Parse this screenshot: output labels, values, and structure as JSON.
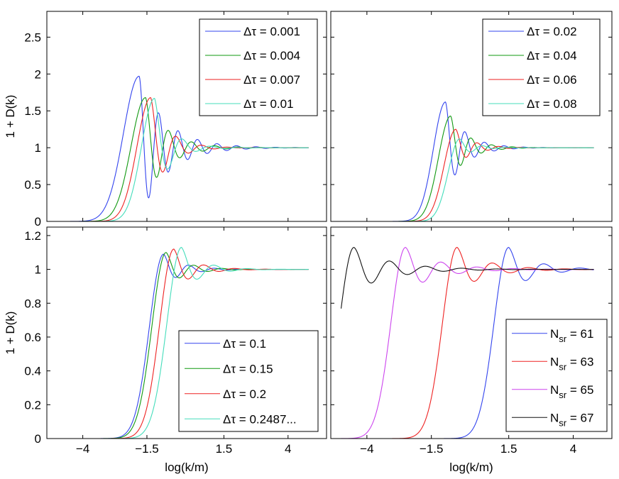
{
  "chart_data": [
    {
      "id": "tl",
      "type": "line",
      "title": "",
      "xlabel": "",
      "ylabel": "1 + D(k)",
      "xlim": [
        -5.4,
        5.5
      ],
      "ylim": [
        0,
        2.85
      ],
      "xticks": [
        -4,
        -1.5,
        1.5,
        4
      ],
      "xticklabels": [
        "",
        "",
        "",
        ""
      ],
      "yticks": [
        0,
        0.5,
        1,
        1.5,
        2,
        2.5
      ],
      "yticklabels": [
        "0",
        "0.5",
        "1",
        "1.5",
        "2",
        "2.5"
      ],
      "legend_position": "top-right",
      "series": [
        {
          "name": "Δτ = 0.001",
          "color": "#3344ee",
          "x_start": -5.0,
          "x_end": 4.8,
          "peak_x": -1.8,
          "peak_y": 1.97,
          "width": 0.78,
          "osc_amp": 1.6,
          "osc_period": 0.38,
          "decay": 0.95,
          "osc_rise": 3.0
        },
        {
          "name": "Δτ = 0.004",
          "color": "#119911",
          "x_start": -5.0,
          "x_end": 4.8,
          "peak_x": -1.55,
          "peak_y": 1.68,
          "width": 0.72,
          "osc_amp": 0.5,
          "osc_period": 0.45,
          "decay": 1.2,
          "osc_rise": 2.0
        },
        {
          "name": "Δτ = 0.007",
          "color": "#ee2222",
          "x_start": -5.0,
          "x_end": 4.8,
          "peak_x": -1.35,
          "peak_y": 1.68,
          "width": 0.68,
          "osc_amp": 0.3,
          "osc_period": 0.5,
          "decay": 1.5,
          "osc_rise": 2.0
        },
        {
          "name": "Δτ = 0.01",
          "color": "#44ddbb",
          "x_start": -5.0,
          "x_end": 4.8,
          "peak_x": -1.2,
          "peak_y": 1.67,
          "width": 0.65,
          "osc_amp": 0.25,
          "osc_period": 0.55,
          "decay": 1.6,
          "osc_rise": 2.0
        }
      ]
    },
    {
      "id": "tr",
      "type": "line",
      "title": "",
      "xlabel": "",
      "ylabel": "",
      "xlim": [
        -5.4,
        5.5
      ],
      "ylim": [
        0,
        2.85
      ],
      "xticks": [
        -4,
        -1.5,
        1.5,
        4
      ],
      "xticklabels": [
        "",
        "",
        "",
        ""
      ],
      "yticks": [
        0,
        0.5,
        1,
        1.5,
        2,
        2.5
      ],
      "yticklabels": [
        "",
        "",
        "",
        "",
        "",
        ""
      ],
      "legend_position": "top-right",
      "series": [
        {
          "name": "Δτ = 0.02",
          "color": "#3344ee",
          "x_start": -5.0,
          "x_end": 4.8,
          "peak_x": -0.95,
          "peak_y": 1.62,
          "width": 0.6,
          "osc_amp": 0.3,
          "osc_period": 0.38,
          "decay": 1.4,
          "osc_rise": 2.0
        },
        {
          "name": "Δτ = 0.04",
          "color": "#119911",
          "x_start": -5.0,
          "x_end": 4.8,
          "peak_x": -0.75,
          "peak_y": 1.43,
          "width": 0.6,
          "osc_amp": 0.22,
          "osc_period": 0.4,
          "decay": 1.5,
          "osc_rise": 2.0
        },
        {
          "name": "Δτ = 0.06",
          "color": "#ee2222",
          "x_start": -5.0,
          "x_end": 4.8,
          "peak_x": -0.55,
          "peak_y": 1.25,
          "width": 0.58,
          "osc_amp": 0.15,
          "osc_period": 0.42,
          "decay": 1.6,
          "osc_rise": 2.0
        },
        {
          "name": "Δτ = 0.08",
          "color": "#44ddbb",
          "x_start": -5.0,
          "x_end": 4.8,
          "peak_x": -0.4,
          "peak_y": 1.12,
          "width": 0.56,
          "osc_amp": 0.1,
          "osc_period": 0.45,
          "decay": 1.7,
          "osc_rise": 2.0
        }
      ]
    },
    {
      "id": "bl",
      "type": "line",
      "title": "",
      "xlabel": "log(k/m)",
      "ylabel": "1 + D(k)",
      "xlim": [
        -5.4,
        5.5
      ],
      "ylim": [
        0,
        1.25
      ],
      "xticks": [
        -4,
        -1.5,
        1.5,
        4
      ],
      "xticklabels": [
        "−4",
        "−1.5",
        "1.5",
        "4"
      ],
      "yticks": [
        0,
        0.2,
        0.4,
        0.6,
        0.8,
        1.0,
        1.2
      ],
      "yticklabels": [
        "0",
        "0.2",
        "0.4",
        "0.6",
        "0.8",
        "1",
        "1.2"
      ],
      "legend_position": "bottom-right",
      "series": [
        {
          "name": "Δτ = 0.1",
          "color": "#3344ee",
          "x_start": -5.0,
          "x_end": 4.8,
          "peak_x": -0.85,
          "peak_y": 1.09,
          "width": 0.7,
          "osc_amp": 0.06,
          "osc_period": 0.5,
          "decay": 1.3,
          "osc_rise": 2.0
        },
        {
          "name": "Δτ = 0.15",
          "color": "#119911",
          "x_start": -5.0,
          "x_end": 4.8,
          "peak_x": -0.75,
          "peak_y": 1.1,
          "width": 0.7,
          "osc_amp": 0.05,
          "osc_period": 0.55,
          "decay": 1.3,
          "osc_rise": 2.0
        },
        {
          "name": "Δτ = 0.2",
          "color": "#ee2222",
          "x_start": -5.0,
          "x_end": 4.8,
          "peak_x": -0.45,
          "peak_y": 1.12,
          "width": 0.7,
          "osc_amp": 0.05,
          "osc_period": 0.6,
          "decay": 1.3,
          "osc_rise": 2.0
        },
        {
          "name": "Δτ = 0.2487...",
          "color": "#44ddbb",
          "x_start": -5.0,
          "x_end": 4.8,
          "peak_x": -0.15,
          "peak_y": 1.13,
          "width": 0.72,
          "osc_amp": 0.05,
          "osc_period": 0.65,
          "decay": 1.3,
          "osc_rise": 2.0
        }
      ]
    },
    {
      "id": "br",
      "type": "line",
      "title": "",
      "xlabel": "log(k/m)",
      "ylabel": "",
      "xlim": [
        -5.4,
        5.5
      ],
      "ylim": [
        0,
        1.25
      ],
      "xticks": [
        -4,
        -1.5,
        1.5,
        4
      ],
      "xticklabels": [
        "−4",
        "−1.5",
        "1.5",
        "4"
      ],
      "yticks": [
        0,
        0.2,
        0.4,
        0.6,
        0.8,
        1.0,
        1.2
      ],
      "yticklabels": [
        "",
        "",
        "",
        "",
        "",
        "",
        ""
      ],
      "legend_position": "bottom-right",
      "series": [
        {
          "name": "N",
          "sub": "sr",
          "suffix": " = 61",
          "color": "#3344ee",
          "x_start": -5.0,
          "x_end": 4.8,
          "peak_x": 1.5,
          "peak_y": 1.13,
          "width": 0.72,
          "osc_amp": 0.05,
          "osc_period": 0.7,
          "decay": 1.0,
          "osc_rise": 2.0
        },
        {
          "name": "N",
          "sub": "sr",
          "suffix": " = 63",
          "color": "#ee2222",
          "x_start": -5.0,
          "x_end": 4.8,
          "peak_x": -0.5,
          "peak_y": 1.13,
          "width": 0.72,
          "osc_amp": 0.05,
          "osc_period": 0.7,
          "decay": 0.9,
          "osc_rise": 2.0
        },
        {
          "name": "N",
          "sub": "sr",
          "suffix": " = 65",
          "color": "#cc44ee",
          "x_start": -5.0,
          "x_end": 4.8,
          "peak_x": -2.5,
          "peak_y": 1.13,
          "width": 0.72,
          "osc_amp": 0.05,
          "osc_period": 0.7,
          "decay": 0.8,
          "osc_rise": 2.0
        },
        {
          "name": "N",
          "sub": "sr",
          "suffix": " = 67",
          "color": "#111111",
          "x_start": -5.0,
          "x_end": 4.8,
          "peak_x": -4.5,
          "peak_y": 1.13,
          "width": 0.72,
          "osc_amp": 0.05,
          "osc_period": 0.7,
          "decay": 0.7,
          "osc_rise": 2.0
        }
      ]
    }
  ]
}
